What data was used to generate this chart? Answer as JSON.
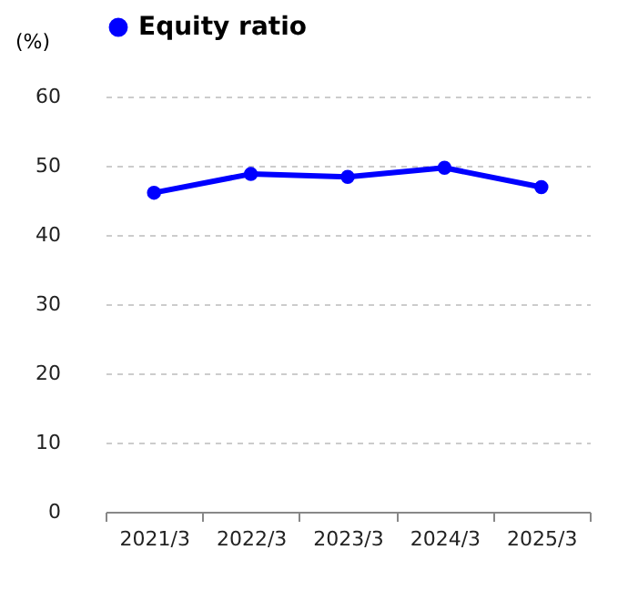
{
  "chart_data": {
    "type": "line",
    "ylabel": "(%)",
    "categories": [
      "2021/3",
      "2022/3",
      "2023/3",
      "2024/3",
      "2025/3"
    ],
    "series": [
      {
        "name": "Equity ratio",
        "color": "#0000ff",
        "values": [
          46.1,
          48.8,
          48.4,
          49.7,
          46.9
        ]
      }
    ],
    "ylim": [
      0,
      60
    ],
    "yticks": [
      0,
      10,
      20,
      30,
      40,
      50,
      60
    ],
    "grid": "y",
    "legend": "top",
    "marker": "circle",
    "line_style": "solid"
  }
}
